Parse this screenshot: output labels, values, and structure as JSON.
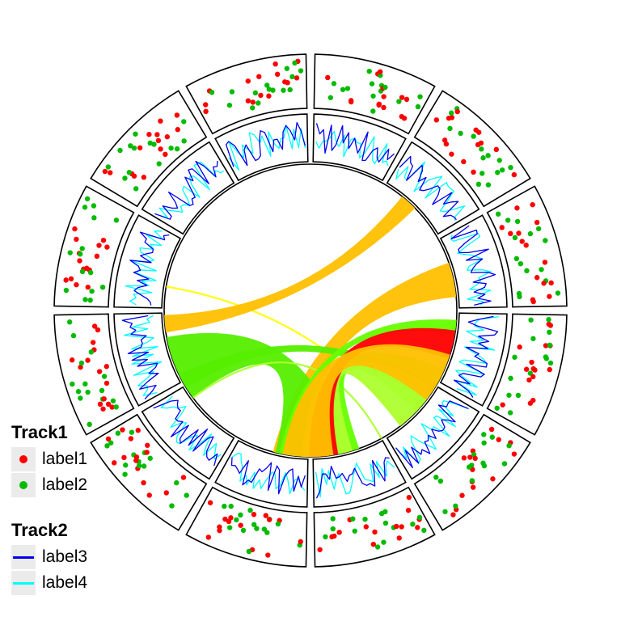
{
  "chart_data": {
    "type": "circos",
    "sectors": 12,
    "legend": {
      "placement": "bottom-left",
      "groups": [
        {
          "title": "Track1",
          "kind": "point",
          "entries": [
            {
              "label": "label1",
              "color": "#ff0000"
            },
            {
              "label": "label2",
              "color": "#00bb00"
            }
          ]
        },
        {
          "title": "Track2",
          "kind": "line",
          "entries": [
            {
              "label": "label3",
              "color": "#0000ee"
            },
            {
              "label": "label4",
              "color": "#00ffff"
            }
          ]
        }
      ]
    },
    "tracks": [
      {
        "name": "Track1",
        "type": "scatter",
        "series": [
          "label1",
          "label2"
        ],
        "points_per_sector": 30
      },
      {
        "name": "Track2",
        "type": "line",
        "series": [
          "label3",
          "label4"
        ],
        "points_per_sector": 24
      }
    ],
    "links": [
      {
        "from": 9.3,
        "to": 4.7,
        "color": "#ffff00",
        "width": 0.05
      },
      {
        "from": 8.85,
        "to": 1.4,
        "color": "#ffc000",
        "width": 0.12
      },
      {
        "from": 2.6,
        "to": 6.25,
        "color": "#ffc000",
        "width": 0.24
      },
      {
        "from": 8.2,
        "to": 6.0,
        "color": "#55ee00",
        "width": 0.45
      },
      {
        "from": 8.0,
        "to": 4.1,
        "color": "#55ee00",
        "width": 0.1
      },
      {
        "from": 7.8,
        "to": 5.0,
        "color": "#adff2f",
        "width": 0.05
      },
      {
        "from": 5.7,
        "to": 4.1,
        "color": "#66ff00",
        "width": 0.35
      },
      {
        "from": 5.8,
        "to": 4.4,
        "color": "#adff2f",
        "width": 0.35
      },
      {
        "from": 6.3,
        "to": 3.2,
        "color": "#66ff00",
        "width": 0.1
      },
      {
        "from": 5.85,
        "to": 3.45,
        "color": "#ff0000",
        "width": 0.2
      },
      {
        "from": 6.0,
        "to": 3.95,
        "color": "#ffc000",
        "width": 0.35
      }
    ]
  }
}
